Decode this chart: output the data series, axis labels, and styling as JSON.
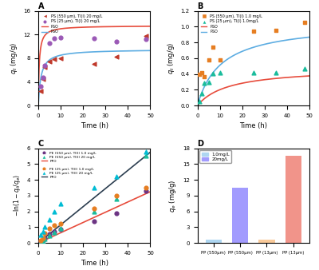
{
  "A": {
    "title": "A",
    "xlabel": "Time (h)",
    "ylabel": "q_t (mg/g)",
    "xlim": [
      0,
      50
    ],
    "ylim": [
      0,
      16
    ],
    "yticks": [
      0,
      4,
      8,
      12,
      16
    ],
    "scatter1": {
      "x": [
        1,
        2,
        3,
        5,
        7,
        10,
        25,
        35,
        48
      ],
      "y": [
        2.5,
        4.5,
        6.5,
        7.5,
        7.8,
        8.0,
        7.0,
        8.3,
        11.8
      ],
      "color": "#c0392b",
      "marker": "<"
    },
    "scatter2": {
      "x": [
        1,
        2,
        3,
        5,
        7,
        10,
        25,
        35,
        48
      ],
      "y": [
        3.2,
        4.8,
        6.8,
        10.5,
        11.3,
        11.5,
        11.3,
        10.8,
        11.2
      ],
      "color": "#9b59b6",
      "marker": "o"
    },
    "curve1": {
      "color": "#e74c3c",
      "qe": 13.5,
      "k": 0.18
    },
    "curve2": {
      "color": "#5dade2",
      "qe": 9.5,
      "k": 0.09
    },
    "legend": [
      "PS (550 μm), Tl(I) 20 mg/L",
      "PS (25 μm), Tl(I) 20 mg/L",
      "PSO",
      "PSO"
    ]
  },
  "B": {
    "title": "B",
    "xlabel": "Time (h)",
    "ylabel": "q_t (mg/g)",
    "xlim": [
      0,
      50
    ],
    "ylim": [
      0,
      1.2
    ],
    "yticks": [
      0.0,
      0.2,
      0.4,
      0.6,
      0.8,
      1.0,
      1.2
    ],
    "scatter1": {
      "x": [
        1,
        2,
        3,
        5,
        7,
        10,
        25,
        35,
        48
      ],
      "y": [
        0.4,
        0.42,
        0.37,
        0.58,
        0.74,
        0.58,
        0.94,
        0.95,
        1.05
      ],
      "color": "#e67e22",
      "marker": "s"
    },
    "scatter2": {
      "x": [
        1,
        2,
        3,
        5,
        7,
        10,
        25,
        35,
        48
      ],
      "y": [
        0.05,
        0.15,
        0.28,
        0.3,
        0.41,
        0.42,
        0.42,
        0.42,
        0.47
      ],
      "color": "#1abc9c",
      "marker": "^"
    },
    "curve1": {
      "color": "#e74c3c",
      "qe": 0.48,
      "k": 0.15
    },
    "curve2": {
      "color": "#5dade2",
      "qe": 1.05,
      "k": 0.09
    },
    "legend": [
      "PS (550 μm), Tl(I) 1.0 mg/L",
      "PS (25 μm), Tl(I) 1.0mg/L",
      "PSO",
      "PSO"
    ]
  },
  "C": {
    "title": "C",
    "xlabel": "Time (h)",
    "ylabel": "-ln(1-q_t/q_e)",
    "xlim": [
      0,
      50
    ],
    "ylim": [
      0,
      6
    ],
    "yticks": [
      0,
      1,
      2,
      3,
      4,
      5,
      6
    ],
    "scatter1": {
      "x": [
        1,
        2,
        3,
        5,
        7,
        10,
        25,
        35,
        48
      ],
      "y": [
        0.1,
        0.15,
        0.3,
        0.55,
        0.7,
        0.85,
        1.4,
        1.9,
        3.3
      ],
      "color": "#6c3483",
      "marker": "o"
    },
    "scatter2": {
      "x": [
        1,
        2,
        3,
        5,
        7,
        10,
        25,
        35,
        48
      ],
      "y": [
        0.05,
        0.12,
        0.25,
        0.45,
        0.65,
        0.9,
        2.0,
        2.8,
        5.5
      ],
      "color": "#1abc9c",
      "marker": "^"
    },
    "scatter3": {
      "x": [
        1,
        2,
        3,
        5,
        7,
        10,
        25,
        35,
        48
      ],
      "y": [
        0.15,
        0.3,
        0.6,
        0.9,
        1.1,
        1.2,
        2.2,
        3.0,
        3.5
      ],
      "color": "#e67e22",
      "marker": "o"
    },
    "scatter4": {
      "x": [
        1,
        2,
        3,
        5,
        7,
        10,
        25,
        35,
        48
      ],
      "y": [
        0.5,
        0.7,
        1.0,
        1.5,
        2.0,
        2.5,
        3.5,
        4.2,
        5.8
      ],
      "color": "#00bcd4",
      "marker": "^"
    },
    "line1": {
      "color": "#e74c3c",
      "slope": 0.065,
      "intercept": 0.0
    },
    "line2": {
      "color": "#2c3e50",
      "slope": 0.115,
      "intercept": 0.0
    },
    "legend": [
      "PE (550 μm), Tl(I) 1.0 mg/L",
      "PE (550 μm), Tl(I) 20 mg/L",
      "PFO",
      "",
      "PE (25 μm), Tl(I) 1.0 mg/L",
      "PE (25 μm), Tl(I) 20 mg/L",
      "PFO"
    ]
  },
  "D": {
    "title": "D",
    "xlabel": "",
    "ylabel": "q_e (mg/g)",
    "xlim_labels": [
      "PP (550μm)",
      "PP (550μm)",
      "PP (13μm)",
      "PP (13μm)"
    ],
    "ylim": [
      0,
      18
    ],
    "yticks": [
      0,
      3,
      6,
      9,
      12,
      15,
      18
    ],
    "bars": [
      {
        "label": "PP (550μm) 1mg/L",
        "value": 0.7,
        "color": "#aed6f1"
      },
      {
        "label": "PP (550μm) 20mg/L",
        "value": 10.5,
        "color": "#a29bfe"
      },
      {
        "label": "PP (13μm) 1mg/L",
        "value": 0.7,
        "color": "#f9ca9a"
      },
      {
        "label": "PP (13μm) 20mg/L",
        "value": 16.5,
        "color": "#f1948a"
      }
    ],
    "legend_labels": [
      "1.0mg/L",
      "20mg/L"
    ],
    "legend_colors_1mg": [
      "#aed6f1",
      "#f9ca9a"
    ],
    "legend_colors_20mg": [
      "#a29bfe",
      "#f1948a"
    ]
  }
}
